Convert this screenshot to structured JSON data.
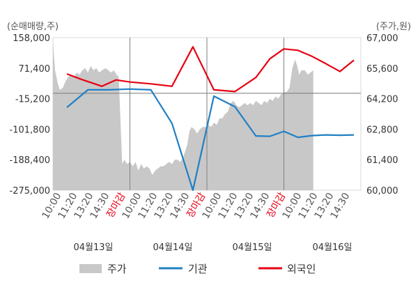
{
  "chart_data": {
    "type": "line",
    "left_axis_unit": "(순매매량,주)",
    "right_axis_unit": "(주가,원)",
    "left_ticks": [
      158000,
      71400,
      -15200,
      -101800,
      -188400,
      -275000
    ],
    "left_tick_labels": [
      "158,000",
      "71,400",
      "-15,200",
      "-101,800",
      "-188,400",
      "-275,000"
    ],
    "right_ticks": [
      67000,
      65600,
      64200,
      62800,
      61400,
      60000
    ],
    "right_tick_labels": [
      "67,000",
      "65,600",
      "64,200",
      "62,800",
      "61,400",
      "60,000"
    ],
    "left_ylim": [
      -275000,
      158000
    ],
    "right_ylim": [
      60000,
      67000
    ],
    "x_labels": [
      "10:00",
      "11:20",
      "13:20",
      "14:30",
      "장마감",
      "10:00",
      "11:20",
      "13:20",
      "14:30",
      "장마감",
      "10:00",
      "11:20",
      "13:20",
      "14:30",
      "장마감",
      "10:00",
      "11:20",
      "13:20",
      "14:30"
    ],
    "x_label_colors": [
      "#555555",
      "#555555",
      "#555555",
      "#555555",
      "#e60012",
      "#555555",
      "#555555",
      "#555555",
      "#555555",
      "#e60012",
      "#555555",
      "#555555",
      "#555555",
      "#555555",
      "#e60012",
      "#555555",
      "#555555",
      "#555555",
      "#555555"
    ],
    "dates": [
      "04월13일",
      "04월14일",
      "04월15일",
      "04월16일"
    ],
    "series": [
      {
        "name": "주가",
        "kind": "area",
        "color": "#c8c8c8",
        "axis": "right",
        "points": [
          [
            0,
            66800
          ],
          [
            0.3,
            65500
          ],
          [
            0.7,
            64900
          ],
          [
            1.0,
            64600
          ],
          [
            1.4,
            64700
          ],
          [
            1.8,
            65000
          ],
          [
            2.2,
            65200
          ],
          [
            2.6,
            65300
          ],
          [
            3.0,
            65200
          ],
          [
            3.4,
            65400
          ],
          [
            3.8,
            65300
          ],
          [
            4.2,
            65500
          ],
          [
            4.6,
            65600
          ],
          [
            5.0,
            65400
          ],
          [
            5.4,
            65700
          ],
          [
            5.8,
            65500
          ],
          [
            6.2,
            65600
          ],
          [
            6.6,
            65400
          ],
          [
            7.0,
            65500
          ],
          [
            7.5,
            65600
          ],
          [
            7.9,
            65500
          ],
          [
            8.3,
            65400
          ],
          [
            8.7,
            65500
          ],
          [
            9.1,
            65300
          ],
          [
            9.4,
            65200
          ],
          [
            9.7,
            62800
          ],
          [
            9.9,
            61200
          ],
          [
            10.2,
            61400
          ],
          [
            10.6,
            61200
          ],
          [
            11.0,
            61300
          ],
          [
            11.4,
            61100
          ],
          [
            11.8,
            61300
          ],
          [
            12.2,
            60900
          ],
          [
            12.6,
            61200
          ],
          [
            13.0,
            61000
          ],
          [
            13.4,
            61100
          ],
          [
            13.8,
            61000
          ],
          [
            14.2,
            60700
          ],
          [
            14.6,
            60900
          ],
          [
            15.0,
            61000
          ],
          [
            15.4,
            61100
          ],
          [
            15.8,
            61100
          ],
          [
            16.2,
            61200
          ],
          [
            16.6,
            61300
          ],
          [
            17.0,
            61200
          ],
          [
            17.4,
            61400
          ],
          [
            17.8,
            61400
          ],
          [
            18.2,
            61300
          ],
          [
            18.6,
            61500
          ],
          [
            18.9,
            61800
          ],
          [
            19.2,
            62100
          ],
          [
            19.5,
            62700
          ],
          [
            19.8,
            62900
          ],
          [
            20.2,
            62800
          ],
          [
            20.6,
            62600
          ],
          [
            21.0,
            62800
          ],
          [
            21.4,
            62900
          ],
          [
            21.8,
            62900
          ],
          [
            22.2,
            63000
          ],
          [
            22.6,
            62900
          ],
          [
            23.0,
            63100
          ],
          [
            23.4,
            63000
          ],
          [
            23.8,
            63300
          ],
          [
            24.2,
            63300
          ],
          [
            24.6,
            63500
          ],
          [
            25.0,
            63600
          ],
          [
            25.4,
            64000
          ],
          [
            25.8,
            64100
          ],
          [
            26.2,
            63900
          ],
          [
            26.6,
            63800
          ],
          [
            27.0,
            63900
          ],
          [
            27.4,
            64000
          ],
          [
            27.8,
            63900
          ],
          [
            28.2,
            64000
          ],
          [
            28.6,
            63900
          ],
          [
            29.0,
            64100
          ],
          [
            29.4,
            64000
          ],
          [
            29.8,
            63900
          ],
          [
            30.2,
            64100
          ],
          [
            30.6,
            64000
          ],
          [
            31.0,
            64200
          ],
          [
            31.4,
            64100
          ],
          [
            31.8,
            64300
          ],
          [
            32.2,
            64200
          ],
          [
            32.6,
            64400
          ],
          [
            33.0,
            64500
          ],
          [
            33.4,
            64500
          ],
          [
            33.8,
            64700
          ],
          [
            34.2,
            65600
          ],
          [
            34.6,
            66000
          ],
          [
            34.9,
            65700
          ],
          [
            35.2,
            65300
          ],
          [
            35.5,
            65500
          ],
          [
            36.0,
            65500
          ],
          [
            36.4,
            65300
          ],
          [
            36.8,
            65400
          ],
          [
            37.2,
            65500
          ]
        ]
      },
      {
        "name": "기관",
        "kind": "line",
        "color": "#1f7fc4",
        "axis": "left",
        "points": [
          [
            2,
            -40000
          ],
          [
            5,
            10000
          ],
          [
            8,
            10000
          ],
          [
            11,
            12000
          ],
          [
            14,
            10000
          ],
          [
            17,
            -85000
          ],
          [
            20,
            -275000
          ],
          [
            23,
            -8000
          ],
          [
            26,
            -38000
          ],
          [
            29,
            -121000
          ],
          [
            31,
            -122000
          ],
          [
            33,
            -108000
          ],
          [
            35,
            -125000
          ],
          [
            37,
            -120000
          ],
          [
            39,
            -118000
          ],
          [
            41,
            -119000
          ],
          [
            43,
            -118000
          ]
        ]
      },
      {
        "name": "외국인",
        "kind": "line",
        "color": "#e60012",
        "axis": "left",
        "points": [
          [
            2,
            55000
          ],
          [
            4,
            40000
          ],
          [
            7,
            20000
          ],
          [
            9,
            38000
          ],
          [
            11,
            32000
          ],
          [
            14,
            27000
          ],
          [
            17,
            20000
          ],
          [
            20,
            132000
          ],
          [
            23,
            10000
          ],
          [
            26,
            5000
          ],
          [
            29,
            45000
          ],
          [
            31,
            98000
          ],
          [
            33,
            126000
          ],
          [
            35,
            122000
          ],
          [
            37,
            105000
          ],
          [
            39,
            84000
          ],
          [
            41,
            62000
          ],
          [
            43,
            94000
          ]
        ]
      }
    ],
    "legend": [
      "주가",
      "기관",
      "외국인"
    ],
    "legend_placement": "bottom",
    "grid": false
  }
}
